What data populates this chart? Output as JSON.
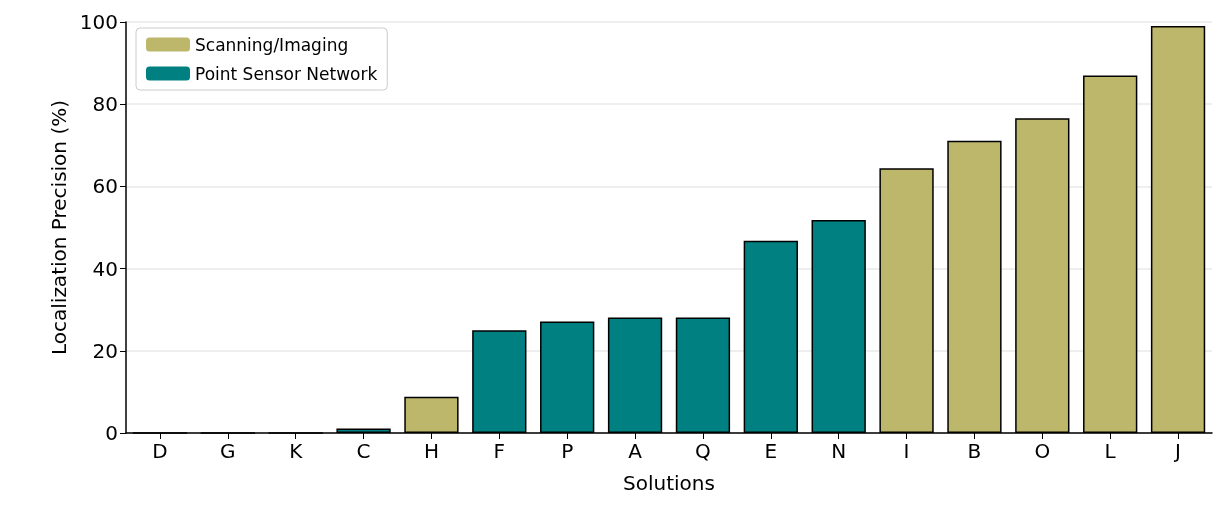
{
  "chart_data": {
    "type": "bar",
    "xlabel": "Solutions",
    "ylabel": "Localization Precision (%)",
    "categories": [
      "D",
      "G",
      "K",
      "C",
      "H",
      "F",
      "P",
      "A",
      "Q",
      "E",
      "N",
      "I",
      "B",
      "O",
      "L",
      "J"
    ],
    "series": [
      {
        "name": "Scanning/Imaging",
        "color": "#bdb76b",
        "values": [
          null,
          null,
          null,
          null,
          8.8,
          null,
          null,
          null,
          null,
          null,
          null,
          64.4,
          71.1,
          76.6,
          87,
          99
        ]
      },
      {
        "name": "Point Sensor Network",
        "color": "#008080",
        "values": [
          0,
          0,
          0,
          1.1,
          null,
          25,
          27.1,
          28.1,
          28.1,
          46.8,
          51.8,
          null,
          null,
          null,
          null,
          null
        ]
      }
    ],
    "ylim": [
      0,
      100
    ],
    "yticks": [
      0,
      20,
      40,
      60,
      80,
      100
    ],
    "grid": "y",
    "legend": "top left"
  }
}
